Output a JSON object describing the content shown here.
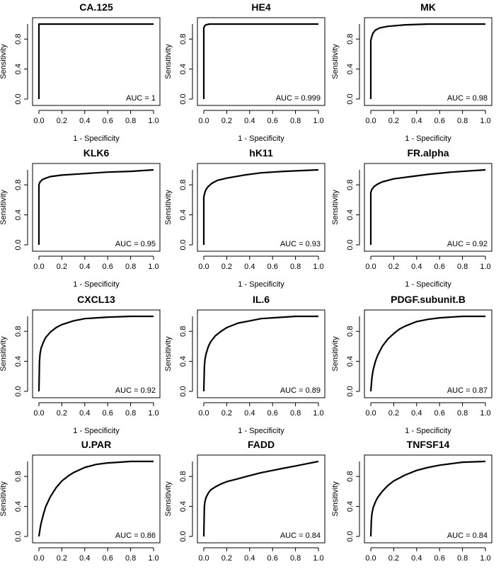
{
  "chart_data": [
    {
      "type": "line",
      "title": "CA.125",
      "xlabel": "1 - Specificity",
      "ylabel": "Sensitivity",
      "xlim": [
        0,
        1
      ],
      "ylim": [
        0,
        1
      ],
      "xticks": [
        "0.0",
        "0.2",
        "0.4",
        "0.6",
        "0.8",
        "1.0"
      ],
      "yticks": [
        "0.0",
        "0.4",
        "0.8"
      ],
      "annotation": "AUC = 1",
      "series": [
        {
          "x": [
            0,
            0,
            0.02,
            1
          ],
          "y": [
            0,
            1,
            1,
            1
          ]
        }
      ]
    },
    {
      "type": "line",
      "title": "HE4",
      "xlabel": "1 - Specificity",
      "ylabel": "Sensitivity",
      "xlim": [
        0,
        1
      ],
      "ylim": [
        0,
        1
      ],
      "xticks": [
        "0.0",
        "0.2",
        "0.4",
        "0.6",
        "0.8",
        "1.0"
      ],
      "yticks": [
        "0.0",
        "0.4",
        "0.8"
      ],
      "annotation": "AUC = 0.999",
      "series": [
        {
          "x": [
            0,
            0,
            0.01,
            0.02,
            0.05,
            1
          ],
          "y": [
            0,
            0.95,
            0.98,
            0.99,
            1,
            1
          ]
        }
      ]
    },
    {
      "type": "line",
      "title": "MK",
      "xlabel": "1 - Specificity",
      "ylabel": "Sensitivity",
      "xlim": [
        0,
        1
      ],
      "ylim": [
        0,
        1
      ],
      "xticks": [
        "0.0",
        "0.2",
        "0.4",
        "0.6",
        "0.8",
        "1.0"
      ],
      "yticks": [
        "0.0",
        "0.4",
        "0.8"
      ],
      "annotation": "AUC = 0.98",
      "series": [
        {
          "x": [
            0,
            0,
            0.01,
            0.02,
            0.04,
            0.08,
            0.15,
            0.3,
            0.5,
            0.7,
            1
          ],
          "y": [
            0,
            0.78,
            0.84,
            0.88,
            0.92,
            0.95,
            0.97,
            0.99,
            1,
            1,
            1
          ]
        }
      ]
    },
    {
      "type": "line",
      "title": "KLK6",
      "xlabel": "1 - Specificity",
      "ylabel": "Sensitivity",
      "xlim": [
        0,
        1
      ],
      "ylim": [
        0,
        1
      ],
      "xticks": [
        "0.0",
        "0.2",
        "0.4",
        "0.6",
        "0.8",
        "1.0"
      ],
      "yticks": [
        "0.0",
        "0.4",
        "0.8"
      ],
      "annotation": "AUC = 0.95",
      "series": [
        {
          "x": [
            0,
            0,
            0.01,
            0.03,
            0.06,
            0.1,
            0.2,
            0.4,
            0.6,
            0.8,
            1
          ],
          "y": [
            0,
            0.8,
            0.84,
            0.87,
            0.89,
            0.91,
            0.93,
            0.95,
            0.97,
            0.98,
            1
          ]
        }
      ]
    },
    {
      "type": "line",
      "title": "hK11",
      "xlabel": "1 - Specificity",
      "ylabel": "Sensitivity",
      "xlim": [
        0,
        1
      ],
      "ylim": [
        0,
        1
      ],
      "xticks": [
        "0.0",
        "0.2",
        "0.4",
        "0.6",
        "0.8",
        "1.0"
      ],
      "yticks": [
        "0.0",
        "0.4",
        "0.8"
      ],
      "annotation": "AUC = 0.93",
      "series": [
        {
          "x": [
            0,
            0,
            0.01,
            0.02,
            0.04,
            0.07,
            0.12,
            0.2,
            0.35,
            0.5,
            0.7,
            1
          ],
          "y": [
            0,
            0.64,
            0.7,
            0.74,
            0.78,
            0.82,
            0.86,
            0.89,
            0.93,
            0.96,
            0.98,
            1
          ]
        }
      ]
    },
    {
      "type": "line",
      "title": "FR.alpha",
      "xlabel": "1 - Specificity",
      "ylabel": "Sensitivity",
      "xlim": [
        0,
        1
      ],
      "ylim": [
        0,
        1
      ],
      "xticks": [
        "0.0",
        "0.2",
        "0.4",
        "0.6",
        "0.8",
        "1.0"
      ],
      "yticks": [
        "0.0",
        "0.4",
        "0.8"
      ],
      "annotation": "AUC = 0.92",
      "series": [
        {
          "x": [
            0,
            0,
            0.01,
            0.03,
            0.06,
            0.1,
            0.2,
            0.35,
            0.5,
            0.7,
            1
          ],
          "y": [
            0,
            0.7,
            0.74,
            0.78,
            0.81,
            0.84,
            0.88,
            0.91,
            0.94,
            0.97,
            1
          ]
        }
      ]
    },
    {
      "type": "line",
      "title": "CXCL13",
      "xlabel": "1 - Specificity",
      "ylabel": "Sensitivity",
      "xlim": [
        0,
        1
      ],
      "ylim": [
        0,
        1
      ],
      "xticks": [
        "0.0",
        "0.2",
        "0.4",
        "0.6",
        "0.8",
        "1.0"
      ],
      "yticks": [
        "0.0",
        "0.4",
        "0.8"
      ],
      "annotation": "AUC = 0.92",
      "series": [
        {
          "x": [
            0,
            0.005,
            0.01,
            0.02,
            0.04,
            0.06,
            0.1,
            0.15,
            0.2,
            0.3,
            0.4,
            0.6,
            0.8,
            1
          ],
          "y": [
            0,
            0.4,
            0.5,
            0.58,
            0.66,
            0.72,
            0.79,
            0.85,
            0.89,
            0.94,
            0.97,
            0.99,
            1,
            1
          ]
        }
      ]
    },
    {
      "type": "line",
      "title": "IL.6",
      "xlabel": "1 - Specificity",
      "ylabel": "Sensitivity",
      "xlim": [
        0,
        1
      ],
      "ylim": [
        0,
        1
      ],
      "xticks": [
        "0.0",
        "0.2",
        "0.4",
        "0.6",
        "0.8",
        "1.0"
      ],
      "yticks": [
        "0.0",
        "0.4",
        "0.8"
      ],
      "annotation": "AUC = 0.89",
      "series": [
        {
          "x": [
            0,
            0.005,
            0.01,
            0.02,
            0.04,
            0.06,
            0.1,
            0.15,
            0.2,
            0.3,
            0.4,
            0.5,
            0.6,
            0.8,
            1
          ],
          "y": [
            0,
            0.32,
            0.42,
            0.5,
            0.6,
            0.66,
            0.74,
            0.8,
            0.85,
            0.91,
            0.94,
            0.97,
            0.98,
            1,
            1
          ]
        }
      ]
    },
    {
      "type": "line",
      "title": "PDGF.subunit.B",
      "xlabel": "1 - Specificity",
      "ylabel": "Sensitivity",
      "xlim": [
        0,
        1
      ],
      "ylim": [
        0,
        1
      ],
      "xticks": [
        "0.0",
        "0.2",
        "0.4",
        "0.6",
        "0.8",
        "1.0"
      ],
      "yticks": [
        "0.0",
        "0.4",
        "0.8"
      ],
      "annotation": "AUC = 0.87",
      "series": [
        {
          "x": [
            0,
            0.01,
            0.02,
            0.04,
            0.06,
            0.1,
            0.15,
            0.2,
            0.25,
            0.3,
            0.4,
            0.5,
            0.6,
            0.8,
            1
          ],
          "y": [
            0,
            0.18,
            0.28,
            0.4,
            0.48,
            0.6,
            0.7,
            0.77,
            0.83,
            0.87,
            0.93,
            0.96,
            0.98,
            1,
            1
          ]
        }
      ]
    },
    {
      "type": "line",
      "title": "U.PAR",
      "xlabel": "1 - Specificity",
      "ylabel": "Sensitivity",
      "xlim": [
        0,
        1
      ],
      "ylim": [
        0,
        1
      ],
      "xticks": [
        "0.0",
        "0.2",
        "0.4",
        "0.6",
        "0.8",
        "1.0"
      ],
      "yticks": [
        "0.0",
        "0.4",
        "0.8"
      ],
      "annotation": "AUC = 0.86",
      "series": [
        {
          "x": [
            0,
            0.01,
            0.02,
            0.04,
            0.06,
            0.1,
            0.15,
            0.2,
            0.25,
            0.3,
            0.4,
            0.5,
            0.6,
            0.7,
            0.8,
            1
          ],
          "y": [
            0,
            0.1,
            0.18,
            0.3,
            0.4,
            0.53,
            0.65,
            0.74,
            0.8,
            0.85,
            0.92,
            0.96,
            0.98,
            0.99,
            1,
            1
          ]
        }
      ]
    },
    {
      "type": "line",
      "title": "FADD",
      "xlabel": "1 - Specificity",
      "ylabel": "Sensitivity",
      "xlim": [
        0,
        1
      ],
      "ylim": [
        0,
        1
      ],
      "xticks": [
        "0.0",
        "0.2",
        "0.4",
        "0.6",
        "0.8",
        "1.0"
      ],
      "yticks": [
        "0.0",
        "0.4",
        "0.8"
      ],
      "annotation": "AUC = 0.84",
      "series": [
        {
          "x": [
            0,
            0.005,
            0.01,
            0.02,
            0.04,
            0.06,
            0.1,
            0.15,
            0.2,
            0.3,
            0.4,
            0.5,
            0.6,
            0.7,
            0.8,
            0.9,
            1
          ],
          "y": [
            0,
            0.4,
            0.46,
            0.52,
            0.58,
            0.62,
            0.66,
            0.7,
            0.73,
            0.77,
            0.81,
            0.85,
            0.88,
            0.91,
            0.94,
            0.97,
            1
          ]
        }
      ]
    },
    {
      "type": "line",
      "title": "TNFSF14",
      "xlabel": "1 - Specificity",
      "ylabel": "Sensitivity",
      "xlim": [
        0,
        1
      ],
      "ylim": [
        0,
        1
      ],
      "xticks": [
        "0.0",
        "0.2",
        "0.4",
        "0.6",
        "0.8",
        "1.0"
      ],
      "yticks": [
        "0.0",
        "0.4",
        "0.8"
      ],
      "annotation": "AUC = 0.84",
      "series": [
        {
          "x": [
            0,
            0.005,
            0.01,
            0.02,
            0.04,
            0.06,
            0.1,
            0.15,
            0.2,
            0.3,
            0.4,
            0.5,
            0.6,
            0.7,
            0.8,
            1
          ],
          "y": [
            0,
            0.22,
            0.3,
            0.38,
            0.46,
            0.52,
            0.6,
            0.68,
            0.74,
            0.82,
            0.88,
            0.92,
            0.95,
            0.97,
            0.99,
            1
          ]
        }
      ]
    }
  ]
}
